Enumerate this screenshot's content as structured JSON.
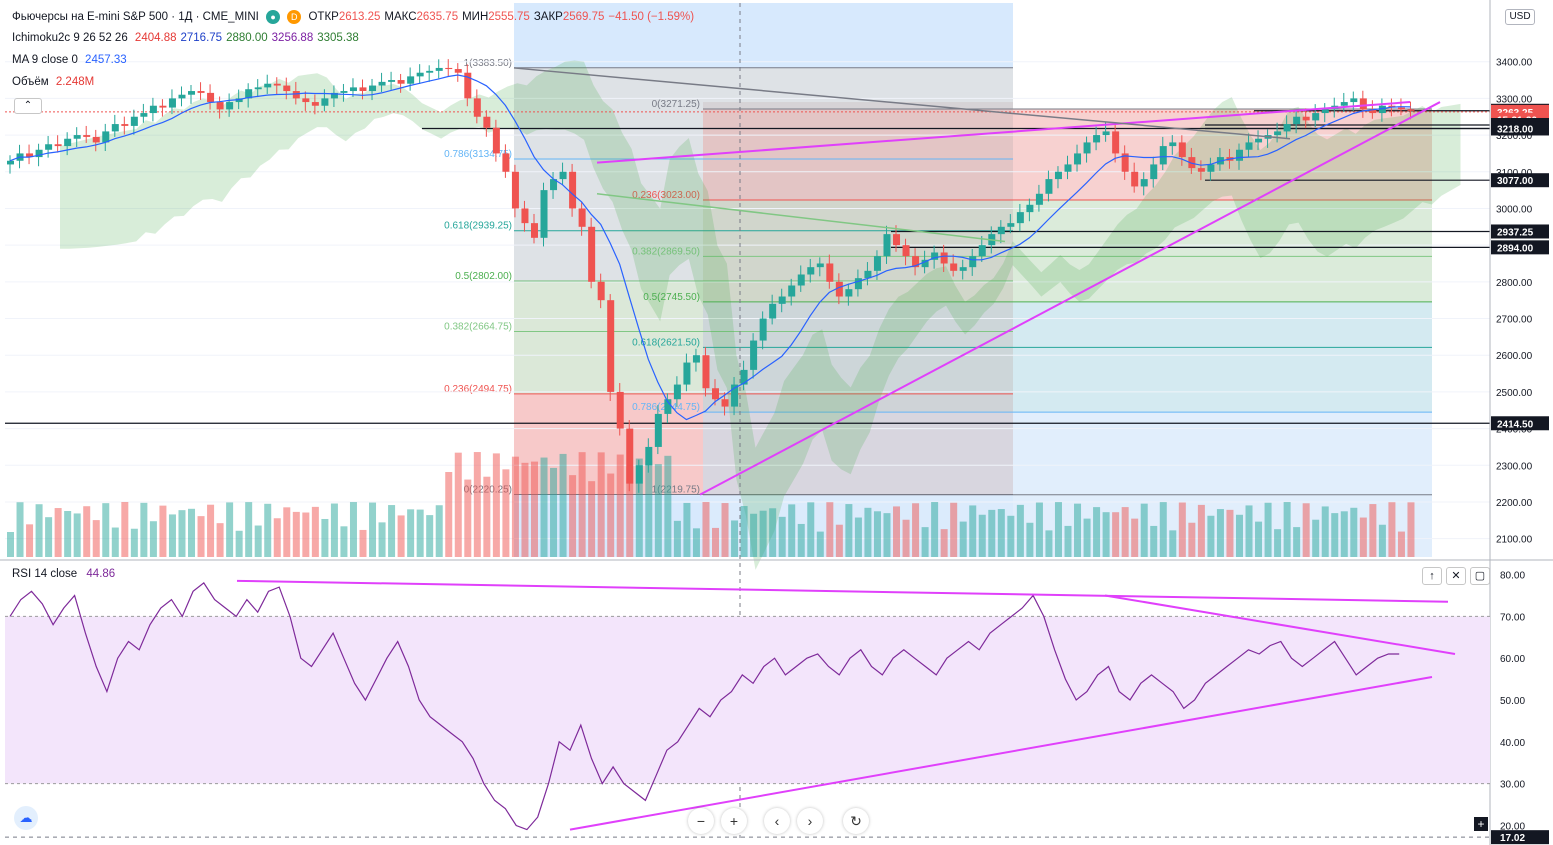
{
  "symbol": {
    "name": "Фьючерсы на E-mini S&P 500 · 1Д · CME_MINI",
    "badge": "D",
    "ohlc": [
      {
        "label": "ОТКР",
        "value": "2613.25"
      },
      {
        "label": "МАКС",
        "value": "2635.75"
      },
      {
        "label": "МИН",
        "value": "2555.75"
      },
      {
        "label": "ЗАКР",
        "value": "2569.75"
      }
    ],
    "change": "−41.50 (−1.59%)"
  },
  "indicators": {
    "ichimoku": {
      "label": "Ichimoku2c 9 26 52 26",
      "values": [
        {
          "v": "2404.88",
          "color": "#e53935"
        },
        {
          "v": "2716.75",
          "color": "#1e40c8"
        },
        {
          "v": "2880.00",
          "color": "#2e7d32"
        },
        {
          "v": "3256.88",
          "color": "#7b1fa2"
        },
        {
          "v": "3305.38",
          "color": "#2e7d32"
        }
      ]
    },
    "ma": {
      "label": "MA 9 close 0",
      "value": "2457.33",
      "color": "#2962ff"
    },
    "volume": {
      "label": "Объём",
      "value": "2.248M",
      "color": "#e53935"
    }
  },
  "currency_button": "USD",
  "collapse_icon": "chevron-up-icon",
  "rsi_legend": {
    "label": "RSI 14 close",
    "value": "44.86"
  },
  "rsi_buttons": [
    {
      "name": "rsi-move-up-icon",
      "glyph": "↑"
    },
    {
      "name": "rsi-close-icon",
      "glyph": "✕"
    },
    {
      "name": "rsi-maximize-icon",
      "glyph": "▢"
    }
  ],
  "nav_buttons": [
    {
      "name": "zoom-out-icon",
      "glyph": "−"
    },
    {
      "name": "zoom-in-icon",
      "glyph": "+"
    },
    {
      "name": "scroll-left-icon",
      "glyph": "‹"
    },
    {
      "name": "scroll-right-icon",
      "glyph": "›"
    },
    {
      "name": "reset-icon",
      "glyph": "↻"
    }
  ],
  "rsi_cursor_value": "17.02",
  "colors": {
    "up": "#26a69a",
    "down": "#ef5350",
    "trend": "#e040fb",
    "rsi": "#7e2a9a"
  },
  "chart_data": [
    {
      "type": "candlestick",
      "ylim": [
        2050,
        3560
      ],
      "y_ticks": [
        2100,
        2200,
        2300,
        2400,
        2500,
        2600,
        2700,
        2800,
        2900,
        3000,
        3100,
        3200,
        3300,
        3400
      ],
      "price_labels": [
        {
          "value": 3266.25,
          "text": "3266.25",
          "bg": "#131722"
        },
        {
          "value": 3263.25,
          "text": "3263.25",
          "bg": "#ef5350"
        },
        {
          "value": 3242,
          "text": "15:31:20",
          "bg": "#ef5350"
        },
        {
          "value": 3227.5,
          "text": "3227.50",
          "bg": "#131722"
        },
        {
          "value": 3218,
          "text": "3218.00",
          "bg": "#131722"
        },
        {
          "value": 3077,
          "text": "3077.00",
          "bg": "#131722"
        },
        {
          "value": 2937.25,
          "text": "2937.25",
          "bg": "#131722"
        },
        {
          "value": 2894,
          "text": "2894.00",
          "bg": "#131722"
        },
        {
          "value": 2414.5,
          "text": "2414.50",
          "bg": "#131722"
        }
      ],
      "fib_left": [
        {
          "ratio": "1",
          "value": "3383.50"
        },
        {
          "ratio": "0.786",
          "value": "3134.75"
        },
        {
          "ratio": "0.618",
          "value": "2939.25"
        },
        {
          "ratio": "0.5",
          "value": "2802.00"
        },
        {
          "ratio": "0.382",
          "value": "2664.75"
        },
        {
          "ratio": "0.236",
          "value": "2494.75"
        },
        {
          "ratio": "0",
          "value": "2220.25"
        }
      ],
      "fib_right": [
        {
          "ratio": "0",
          "value": "3271.25"
        },
        {
          "ratio": "0.236",
          "value": "3023.00"
        },
        {
          "ratio": "0.382",
          "value": "2869.50"
        },
        {
          "ratio": "0.5",
          "value": "2745.50"
        },
        {
          "ratio": "0.618",
          "value": "2621.50"
        },
        {
          "ratio": "0.786",
          "value": "2444.75"
        },
        {
          "ratio": "1",
          "value": "2219.75"
        }
      ],
      "closes": [
        3130,
        3150,
        3140,
        3160,
        3175,
        3170,
        3190,
        3200,
        3195,
        3180,
        3210,
        3230,
        3225,
        3250,
        3260,
        3280,
        3275,
        3300,
        3310,
        3320,
        3315,
        3290,
        3270,
        3290,
        3300,
        3325,
        3330,
        3340,
        3335,
        3320,
        3300,
        3290,
        3280,
        3300,
        3315,
        3320,
        3330,
        3320,
        3335,
        3345,
        3350,
        3340,
        3360,
        3370,
        3375,
        3383,
        3380,
        3370,
        3300,
        3250,
        3220,
        3150,
        3100,
        3000,
        2960,
        2920,
        3050,
        3080,
        3100,
        3000,
        2950,
        2800,
        2750,
        2500,
        2400,
        2250,
        2300,
        2350,
        2440,
        2480,
        2520,
        2580,
        2600,
        2510,
        2480,
        2460,
        2520,
        2560,
        2640,
        2700,
        2740,
        2760,
        2790,
        2820,
        2840,
        2850,
        2800,
        2760,
        2780,
        2810,
        2830,
        2870,
        2930,
        2900,
        2870,
        2840,
        2860,
        2880,
        2850,
        2830,
        2840,
        2870,
        2900,
        2930,
        2950,
        2960,
        2990,
        3010,
        3040,
        3080,
        3100,
        3120,
        3150,
        3180,
        3200,
        3210,
        3150,
        3100,
        3060,
        3080,
        3120,
        3170,
        3180,
        3140,
        3110,
        3100,
        3120,
        3140,
        3130,
        3160,
        3180,
        3190,
        3200,
        3210,
        3230,
        3250,
        3240,
        3260,
        3270,
        3280,
        3290,
        3300,
        3270,
        3260,
        3280,
        3275,
        3270,
        3266
      ],
      "volume_label": "Объём"
    },
    {
      "type": "line",
      "name": "RSI 14 close",
      "ylim": [
        17,
        83
      ],
      "y_ticks": [
        20,
        30,
        40,
        50,
        60,
        70,
        80
      ],
      "band": [
        30,
        70
      ],
      "values": [
        70,
        74,
        76,
        73,
        68,
        72,
        75,
        66,
        58,
        52,
        60,
        64,
        62,
        68,
        72,
        74,
        70,
        76,
        78,
        74,
        72,
        70,
        74,
        71,
        76,
        77,
        70,
        60,
        58,
        62,
        66,
        60,
        54,
        50,
        55,
        60,
        64,
        58,
        50,
        46,
        44,
        42,
        40,
        36,
        30,
        26,
        24,
        20,
        19,
        22,
        30,
        40,
        38,
        44,
        36,
        30,
        34,
        30,
        28,
        26,
        32,
        38,
        40,
        44,
        48,
        46,
        50,
        52,
        56,
        54,
        58,
        60,
        56,
        58,
        60,
        61,
        58,
        56,
        60,
        62,
        58,
        56,
        60,
        62,
        60,
        58,
        56,
        60,
        62,
        64,
        62,
        66,
        68,
        70,
        72,
        75,
        70,
        62,
        55,
        50,
        52,
        56,
        58,
        52,
        50,
        54,
        56,
        54,
        52,
        48,
        50,
        54,
        56,
        58,
        60,
        62,
        61,
        63,
        64,
        60,
        58,
        60,
        62,
        64,
        60,
        56,
        58,
        60,
        61,
        61
      ]
    }
  ]
}
